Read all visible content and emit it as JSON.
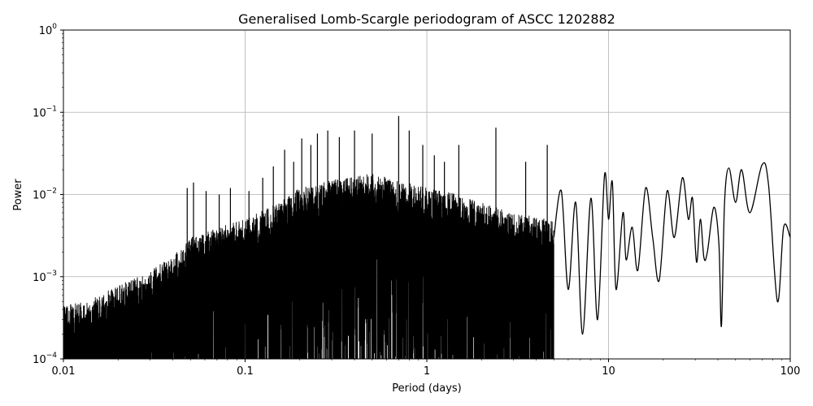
{
  "chart_data": {
    "type": "line",
    "title": "Generalised Lomb-Scargle periodogram of ASCC 1202882",
    "xlabel": "Period (days)",
    "ylabel": "Power",
    "x_scale": "log",
    "y_scale": "log",
    "xlim": [
      0.01,
      100
    ],
    "ylim": [
      0.0001,
      1
    ],
    "grid": true,
    "line_color": "#000000",
    "x_ticks": [
      {
        "value": 0.01,
        "label": "0.01"
      },
      {
        "value": 0.1,
        "label": "0.1"
      },
      {
        "value": 1,
        "label": "1"
      },
      {
        "value": 10,
        "label": "10"
      },
      {
        "value": 100,
        "label": "100"
      }
    ],
    "y_ticks": [
      {
        "value": 0.0001,
        "base": "10",
        "exp": "−4"
      },
      {
        "value": 0.001,
        "base": "10",
        "exp": "−3"
      },
      {
        "value": 0.01,
        "base": "10",
        "exp": "−2"
      },
      {
        "value": 0.1,
        "base": "10",
        "exp": "−1"
      },
      {
        "value": 1,
        "base": "10",
        "exp": "0"
      }
    ],
    "envelope": [
      {
        "x": 0.01,
        "y": 0.00045
      },
      {
        "x": 0.013,
        "y": 0.0005
      },
      {
        "x": 0.016,
        "y": 0.0006
      },
      {
        "x": 0.02,
        "y": 0.0008
      },
      {
        "x": 0.025,
        "y": 0.001
      },
      {
        "x": 0.03,
        "y": 0.0012
      },
      {
        "x": 0.04,
        "y": 0.0018
      },
      {
        "x": 0.05,
        "y": 0.003
      },
      {
        "x": 0.07,
        "y": 0.004
      },
      {
        "x": 0.1,
        "y": 0.005
      },
      {
        "x": 0.15,
        "y": 0.008
      },
      {
        "x": 0.2,
        "y": 0.012
      },
      {
        "x": 0.3,
        "y": 0.015
      },
      {
        "x": 0.5,
        "y": 0.018
      },
      {
        "x": 0.7,
        "y": 0.015
      },
      {
        "x": 1.0,
        "y": 0.012
      },
      {
        "x": 1.5,
        "y": 0.01
      },
      {
        "x": 2.0,
        "y": 0.008
      },
      {
        "x": 3.0,
        "y": 0.006
      },
      {
        "x": 5.0,
        "y": 0.005
      }
    ],
    "peaks": [
      {
        "x": 0.048,
        "y": 0.012
      },
      {
        "x": 0.052,
        "y": 0.014
      },
      {
        "x": 0.061,
        "y": 0.011
      },
      {
        "x": 0.072,
        "y": 0.01
      },
      {
        "x": 0.083,
        "y": 0.012
      },
      {
        "x": 0.105,
        "y": 0.011
      },
      {
        "x": 0.125,
        "y": 0.016
      },
      {
        "x": 0.143,
        "y": 0.022
      },
      {
        "x": 0.165,
        "y": 0.035
      },
      {
        "x": 0.185,
        "y": 0.025
      },
      {
        "x": 0.205,
        "y": 0.048
      },
      {
        "x": 0.23,
        "y": 0.04
      },
      {
        "x": 0.25,
        "y": 0.055
      },
      {
        "x": 0.285,
        "y": 0.06
      },
      {
        "x": 0.33,
        "y": 0.05
      },
      {
        "x": 0.4,
        "y": 0.06
      },
      {
        "x": 0.5,
        "y": 0.055
      },
      {
        "x": 0.7,
        "y": 0.09
      },
      {
        "x": 0.8,
        "y": 0.06
      },
      {
        "x": 0.95,
        "y": 0.04
      },
      {
        "x": 1.1,
        "y": 0.03
      },
      {
        "x": 1.25,
        "y": 0.025
      },
      {
        "x": 1.5,
        "y": 0.04
      },
      {
        "x": 2.4,
        "y": 0.065
      },
      {
        "x": 3.5,
        "y": 0.025
      },
      {
        "x": 4.6,
        "y": 0.04
      }
    ],
    "long_period_curve": [
      {
        "x": 5.0,
        "y": 0.003
      },
      {
        "x": 5.5,
        "y": 0.011
      },
      {
        "x": 6.0,
        "y": 0.0007
      },
      {
        "x": 6.6,
        "y": 0.008
      },
      {
        "x": 7.2,
        "y": 0.0002
      },
      {
        "x": 8.0,
        "y": 0.009
      },
      {
        "x": 8.7,
        "y": 0.0003
      },
      {
        "x": 9.5,
        "y": 0.017
      },
      {
        "x": 10.0,
        "y": 0.005
      },
      {
        "x": 10.5,
        "y": 0.014
      },
      {
        "x": 11.0,
        "y": 0.0007
      },
      {
        "x": 12.0,
        "y": 0.006
      },
      {
        "x": 12.5,
        "y": 0.0016
      },
      {
        "x": 13.5,
        "y": 0.004
      },
      {
        "x": 14.5,
        "y": 0.0012
      },
      {
        "x": 16.0,
        "y": 0.012
      },
      {
        "x": 17.5,
        "y": 0.003
      },
      {
        "x": 19.0,
        "y": 0.0009
      },
      {
        "x": 21.0,
        "y": 0.011
      },
      {
        "x": 23.0,
        "y": 0.003
      },
      {
        "x": 25.5,
        "y": 0.016
      },
      {
        "x": 27.5,
        "y": 0.005
      },
      {
        "x": 29.0,
        "y": 0.009
      },
      {
        "x": 30.5,
        "y": 0.0015
      },
      {
        "x": 32.0,
        "y": 0.005
      },
      {
        "x": 33.5,
        "y": 0.0017
      },
      {
        "x": 35.0,
        "y": 0.002
      },
      {
        "x": 38.0,
        "y": 0.007
      },
      {
        "x": 40.5,
        "y": 0.0025
      },
      {
        "x": 41.8,
        "y": 0.00025
      },
      {
        "x": 43.5,
        "y": 0.008
      },
      {
        "x": 46.0,
        "y": 0.021
      },
      {
        "x": 50.0,
        "y": 0.008
      },
      {
        "x": 54.0,
        "y": 0.02
      },
      {
        "x": 60.0,
        "y": 0.006
      },
      {
        "x": 70.0,
        "y": 0.023
      },
      {
        "x": 76.0,
        "y": 0.013
      },
      {
        "x": 85.0,
        "y": 0.0005
      },
      {
        "x": 92.0,
        "y": 0.004
      },
      {
        "x": 100.0,
        "y": 0.003
      }
    ]
  }
}
